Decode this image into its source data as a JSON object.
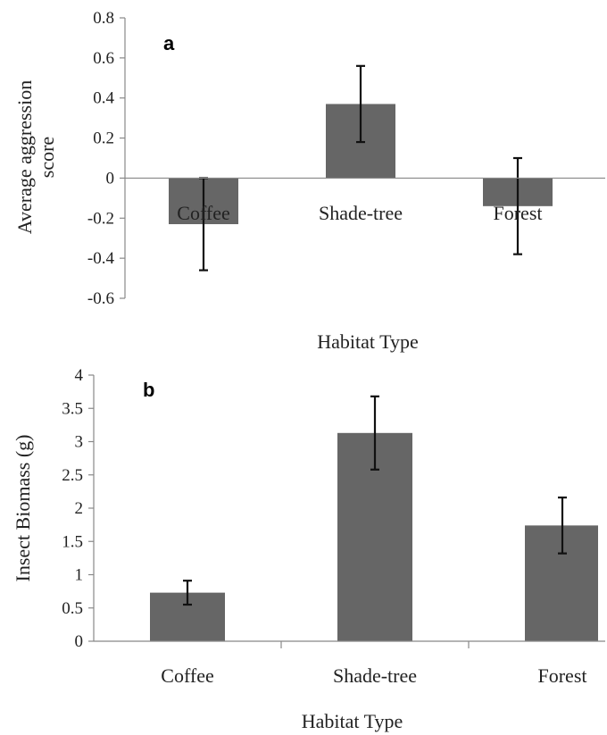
{
  "chart_data": [
    {
      "type": "bar",
      "panel_label": "a",
      "categories": [
        "Coffee",
        "Shade-tree",
        "Forest"
      ],
      "values": [
        -0.23,
        0.37,
        -0.14
      ],
      "error": [
        0.23,
        0.19,
        0.24
      ],
      "ylabel": [
        "Average aggression",
        "score"
      ],
      "xlabel": "Habitat Type",
      "ylim": [
        -0.6,
        0.8
      ],
      "yticks": [
        0.8,
        0.6,
        0.4,
        0.2,
        0,
        -0.2,
        -0.4,
        -0.6
      ],
      "ytick_labels": [
        "0.8",
        "0.6",
        "0.4",
        "0.2",
        "0",
        "-0.2",
        "-0.4",
        "-0.6"
      ],
      "bar_color": "#666666",
      "grid": false
    },
    {
      "type": "bar",
      "panel_label": "b",
      "categories": [
        "Coffee",
        "Shade-tree",
        "Forest"
      ],
      "values": [
        0.73,
        3.13,
        1.74
      ],
      "error": [
        0.18,
        0.55,
        0.42
      ],
      "ylabel": [
        "Insect Biomass (g)"
      ],
      "xlabel": "Habitat Type",
      "ylim": [
        0,
        4
      ],
      "yticks": [
        4,
        3.5,
        3,
        2.5,
        2,
        1.5,
        1,
        0.5,
        0
      ],
      "ytick_labels": [
        "4",
        "3.5",
        "3",
        "2.5",
        "2",
        "1.5",
        "1",
        "0.5",
        "0"
      ],
      "bar_color": "#666666",
      "grid": false
    }
  ]
}
